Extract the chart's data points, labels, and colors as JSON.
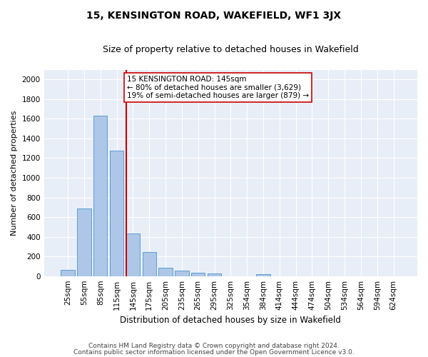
{
  "title": "15, KENSINGTON ROAD, WAKEFIELD, WF1 3JX",
  "subtitle": "Size of property relative to detached houses in Wakefield",
  "xlabel": "Distribution of detached houses by size in Wakefield",
  "ylabel": "Number of detached properties",
  "categories": [
    "25sqm",
    "55sqm",
    "85sqm",
    "115sqm",
    "145sqm",
    "175sqm",
    "205sqm",
    "235sqm",
    "265sqm",
    "295sqm",
    "325sqm",
    "354sqm",
    "384sqm",
    "414sqm",
    "444sqm",
    "474sqm",
    "504sqm",
    "534sqm",
    "564sqm",
    "594sqm",
    "624sqm"
  ],
  "values": [
    65,
    690,
    1630,
    1275,
    435,
    248,
    85,
    55,
    35,
    25,
    0,
    0,
    18,
    0,
    0,
    0,
    0,
    0,
    0,
    0,
    0
  ],
  "bar_color": "#aec6e8",
  "bar_edge_color": "#5a9fd4",
  "vline_color": "#cc0000",
  "vline_x_index": 4,
  "annotation_text": "15 KENSINGTON ROAD: 145sqm\n← 80% of detached houses are smaller (3,629)\n19% of semi-detached houses are larger (879) →",
  "annotation_box_color": "#ffffff",
  "annotation_box_edge_color": "#cc0000",
  "ylim": [
    0,
    2100
  ],
  "yticks": [
    0,
    200,
    400,
    600,
    800,
    1000,
    1200,
    1400,
    1600,
    1800,
    2000
  ],
  "background_color": "#e8eef7",
  "grid_color": "#ffffff",
  "footer_line1": "Contains HM Land Registry data © Crown copyright and database right 2024.",
  "footer_line2": "Contains public sector information licensed under the Open Government Licence v3.0.",
  "title_fontsize": 10,
  "subtitle_fontsize": 9,
  "xlabel_fontsize": 8.5,
  "ylabel_fontsize": 8,
  "tick_fontsize": 7.5,
  "annotation_fontsize": 7.5,
  "footer_fontsize": 6.5
}
